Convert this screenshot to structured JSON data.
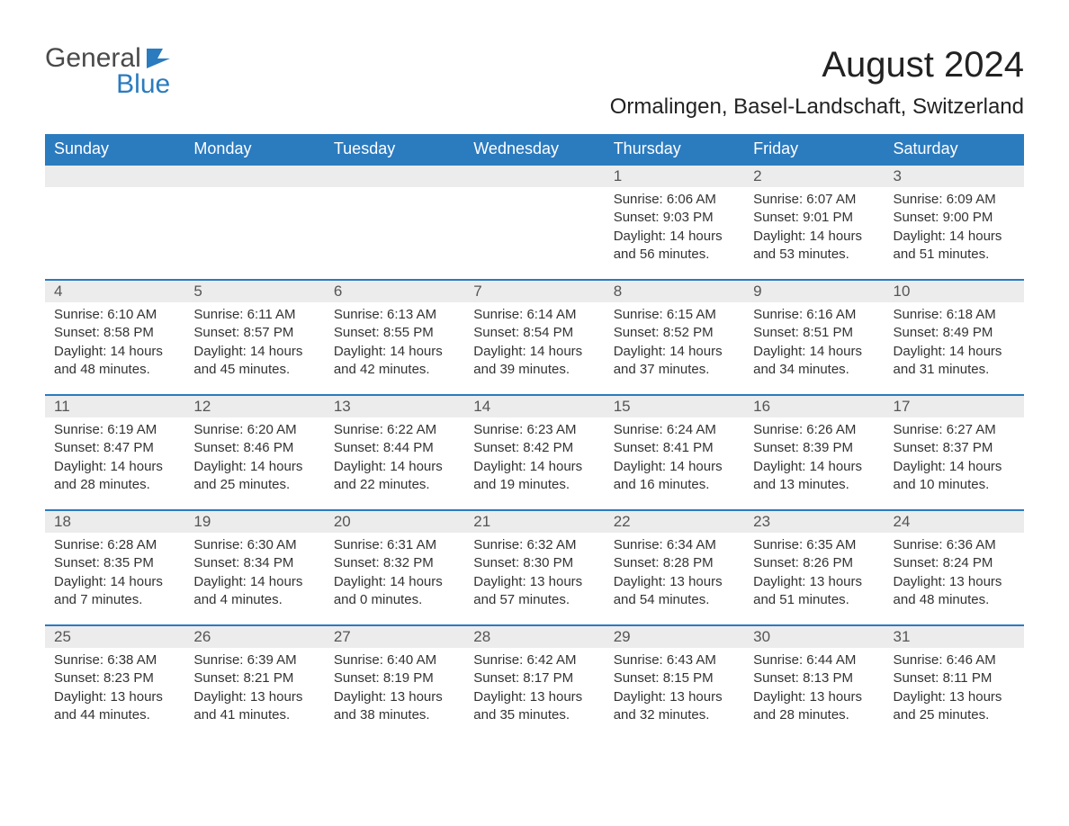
{
  "logo": {
    "general": "General",
    "blue": "Blue",
    "icon_color": "#2b7bbf"
  },
  "title": "August 2024",
  "location": "Ormalingen, Basel-Landschaft, Switzerland",
  "header_bg": "#2b7bbf",
  "header_fg": "#ffffff",
  "row_accent": "#2b7bbf",
  "daynum_bg": "#ececec",
  "text_color": "#333333",
  "weekdays": [
    "Sunday",
    "Monday",
    "Tuesday",
    "Wednesday",
    "Thursday",
    "Friday",
    "Saturday"
  ],
  "labels": {
    "sunrise": "Sunrise:",
    "sunset": "Sunset:",
    "daylight": "Daylight:"
  },
  "weeks": [
    [
      null,
      null,
      null,
      null,
      {
        "n": "1",
        "sr": "6:06 AM",
        "ss": "9:03 PM",
        "dl": "14 hours and 56 minutes."
      },
      {
        "n": "2",
        "sr": "6:07 AM",
        "ss": "9:01 PM",
        "dl": "14 hours and 53 minutes."
      },
      {
        "n": "3",
        "sr": "6:09 AM",
        "ss": "9:00 PM",
        "dl": "14 hours and 51 minutes."
      }
    ],
    [
      {
        "n": "4",
        "sr": "6:10 AM",
        "ss": "8:58 PM",
        "dl": "14 hours and 48 minutes."
      },
      {
        "n": "5",
        "sr": "6:11 AM",
        "ss": "8:57 PM",
        "dl": "14 hours and 45 minutes."
      },
      {
        "n": "6",
        "sr": "6:13 AM",
        "ss": "8:55 PM",
        "dl": "14 hours and 42 minutes."
      },
      {
        "n": "7",
        "sr": "6:14 AM",
        "ss": "8:54 PM",
        "dl": "14 hours and 39 minutes."
      },
      {
        "n": "8",
        "sr": "6:15 AM",
        "ss": "8:52 PM",
        "dl": "14 hours and 37 minutes."
      },
      {
        "n": "9",
        "sr": "6:16 AM",
        "ss": "8:51 PM",
        "dl": "14 hours and 34 minutes."
      },
      {
        "n": "10",
        "sr": "6:18 AM",
        "ss": "8:49 PM",
        "dl": "14 hours and 31 minutes."
      }
    ],
    [
      {
        "n": "11",
        "sr": "6:19 AM",
        "ss": "8:47 PM",
        "dl": "14 hours and 28 minutes."
      },
      {
        "n": "12",
        "sr": "6:20 AM",
        "ss": "8:46 PM",
        "dl": "14 hours and 25 minutes."
      },
      {
        "n": "13",
        "sr": "6:22 AM",
        "ss": "8:44 PM",
        "dl": "14 hours and 22 minutes."
      },
      {
        "n": "14",
        "sr": "6:23 AM",
        "ss": "8:42 PM",
        "dl": "14 hours and 19 minutes."
      },
      {
        "n": "15",
        "sr": "6:24 AM",
        "ss": "8:41 PM",
        "dl": "14 hours and 16 minutes."
      },
      {
        "n": "16",
        "sr": "6:26 AM",
        "ss": "8:39 PM",
        "dl": "14 hours and 13 minutes."
      },
      {
        "n": "17",
        "sr": "6:27 AM",
        "ss": "8:37 PM",
        "dl": "14 hours and 10 minutes."
      }
    ],
    [
      {
        "n": "18",
        "sr": "6:28 AM",
        "ss": "8:35 PM",
        "dl": "14 hours and 7 minutes."
      },
      {
        "n": "19",
        "sr": "6:30 AM",
        "ss": "8:34 PM",
        "dl": "14 hours and 4 minutes."
      },
      {
        "n": "20",
        "sr": "6:31 AM",
        "ss": "8:32 PM",
        "dl": "14 hours and 0 minutes."
      },
      {
        "n": "21",
        "sr": "6:32 AM",
        "ss": "8:30 PM",
        "dl": "13 hours and 57 minutes."
      },
      {
        "n": "22",
        "sr": "6:34 AM",
        "ss": "8:28 PM",
        "dl": "13 hours and 54 minutes."
      },
      {
        "n": "23",
        "sr": "6:35 AM",
        "ss": "8:26 PM",
        "dl": "13 hours and 51 minutes."
      },
      {
        "n": "24",
        "sr": "6:36 AM",
        "ss": "8:24 PM",
        "dl": "13 hours and 48 minutes."
      }
    ],
    [
      {
        "n": "25",
        "sr": "6:38 AM",
        "ss": "8:23 PM",
        "dl": "13 hours and 44 minutes."
      },
      {
        "n": "26",
        "sr": "6:39 AM",
        "ss": "8:21 PM",
        "dl": "13 hours and 41 minutes."
      },
      {
        "n": "27",
        "sr": "6:40 AM",
        "ss": "8:19 PM",
        "dl": "13 hours and 38 minutes."
      },
      {
        "n": "28",
        "sr": "6:42 AM",
        "ss": "8:17 PM",
        "dl": "13 hours and 35 minutes."
      },
      {
        "n": "29",
        "sr": "6:43 AM",
        "ss": "8:15 PM",
        "dl": "13 hours and 32 minutes."
      },
      {
        "n": "30",
        "sr": "6:44 AM",
        "ss": "8:13 PM",
        "dl": "13 hours and 28 minutes."
      },
      {
        "n": "31",
        "sr": "6:46 AM",
        "ss": "8:11 PM",
        "dl": "13 hours and 25 minutes."
      }
    ]
  ]
}
